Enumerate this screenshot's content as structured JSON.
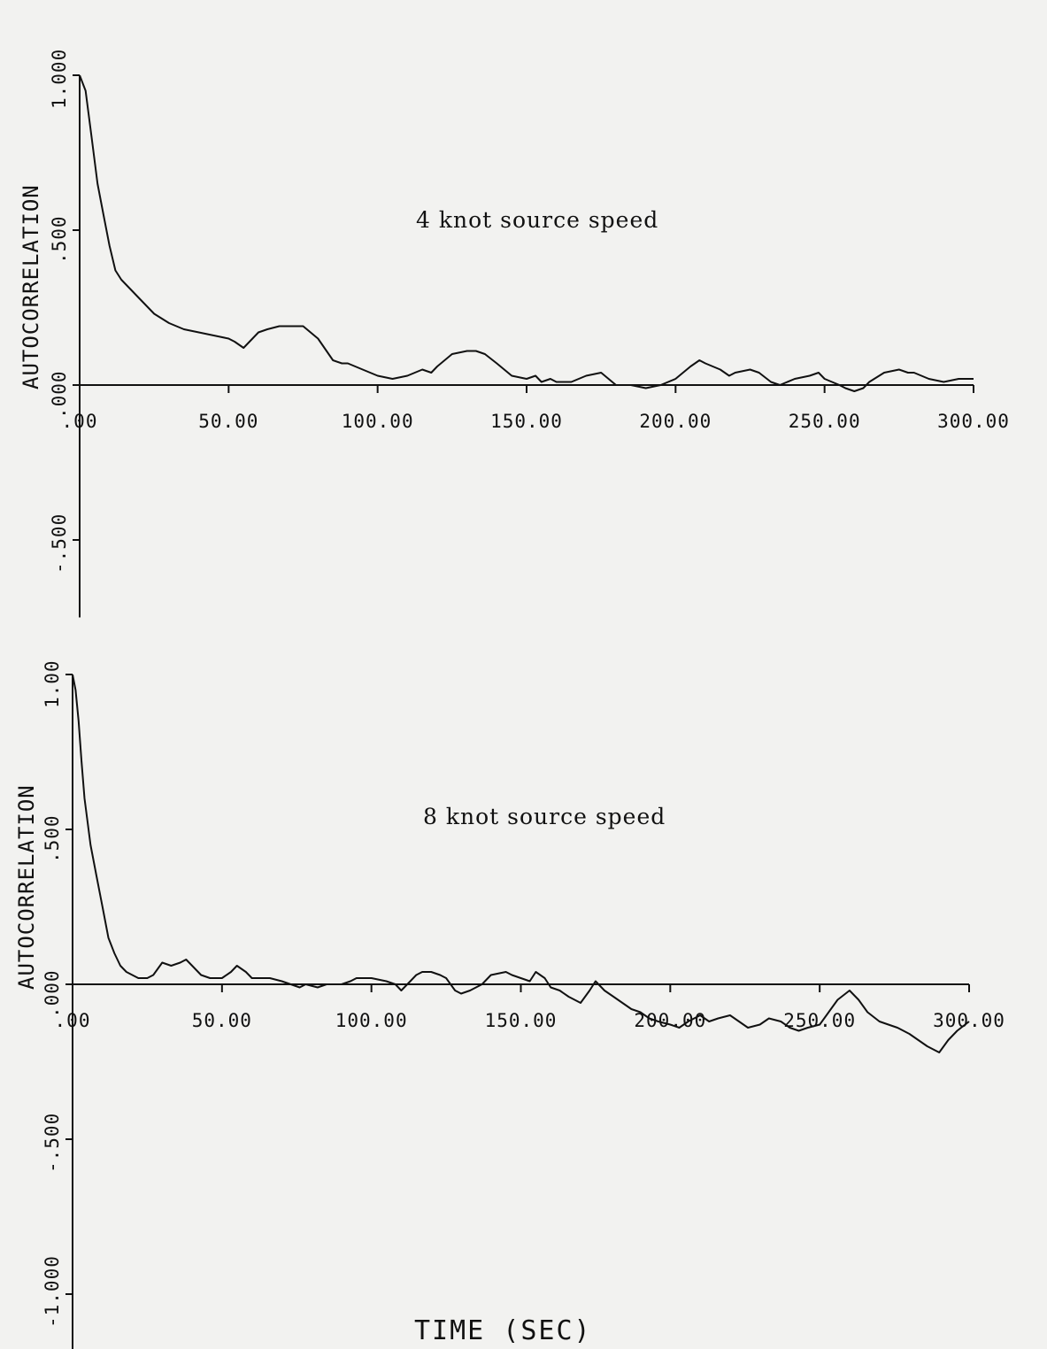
{
  "chart_data": [
    {
      "type": "line",
      "title": "",
      "annotation": "4 knot source speed",
      "xlabel": "",
      "ylabel": "AUTOCORRELATION",
      "xlim": [
        0,
        300
      ],
      "ylim": [
        -0.75,
        1.0
      ],
      "grid": false,
      "x_tick_labels": [
        ".00",
        "50.00",
        "100.00",
        "150.00",
        "200.00",
        "250.00",
        "300.00"
      ],
      "y_tick_labels": [
        "-.500",
        ".000",
        ".500",
        "1.000"
      ],
      "series": [
        {
          "x": [
            0,
            2,
            4,
            6,
            8,
            10,
            12,
            14,
            17,
            20,
            25,
            30,
            35,
            40,
            45,
            50,
            52,
            55,
            58,
            60,
            63,
            67,
            70,
            75,
            80,
            85,
            88,
            90,
            95,
            100,
            105,
            110,
            115,
            118,
            120,
            125,
            130,
            133,
            136,
            140,
            145,
            150,
            153,
            155,
            158,
            160,
            165,
            170,
            175,
            180,
            185,
            190,
            195,
            200,
            205,
            208,
            210,
            215,
            218,
            220,
            225,
            228,
            232,
            235,
            240,
            245,
            248,
            250,
            255,
            257,
            260,
            263,
            265,
            270,
            275,
            278,
            280,
            285,
            290,
            295,
            300
          ],
          "y": [
            1.0,
            0.95,
            0.8,
            0.65,
            0.55,
            0.45,
            0.37,
            0.34,
            0.31,
            0.28,
            0.23,
            0.2,
            0.18,
            0.17,
            0.16,
            0.15,
            0.14,
            0.12,
            0.15,
            0.17,
            0.18,
            0.19,
            0.19,
            0.19,
            0.15,
            0.08,
            0.07,
            0.07,
            0.05,
            0.03,
            0.02,
            0.03,
            0.05,
            0.04,
            0.06,
            0.1,
            0.11,
            0.11,
            0.1,
            0.07,
            0.03,
            0.02,
            0.03,
            0.01,
            0.02,
            0.01,
            0.01,
            0.03,
            0.04,
            0.0,
            0.0,
            -0.01,
            0.0,
            0.02,
            0.06,
            0.08,
            0.07,
            0.05,
            0.03,
            0.04,
            0.05,
            0.04,
            0.01,
            0.0,
            0.02,
            0.03,
            0.04,
            0.02,
            0.0,
            -0.01,
            -0.02,
            -0.01,
            0.01,
            0.04,
            0.05,
            0.04,
            0.04,
            0.02,
            0.01,
            0.02,
            0.02
          ]
        }
      ]
    },
    {
      "type": "line",
      "title": "",
      "annotation": "8 knot source speed",
      "xlabel": "TIME (SEC)",
      "ylabel": "AUTOCORRELATION",
      "xlim": [
        0,
        300
      ],
      "ylim": [
        -1.25,
        1.0
      ],
      "grid": false,
      "x_tick_labels": [
        ".00",
        "50.00",
        "100.00",
        "150.00",
        "200.00",
        "250.00",
        "300.00"
      ],
      "y_tick_labels": [
        "-1.000",
        "-.500",
        ".000",
        ".500",
        "1.00"
      ],
      "series": [
        {
          "x": [
            0,
            1,
            2,
            3,
            4,
            6,
            8,
            10,
            12,
            14,
            16,
            18,
            20,
            22,
            25,
            27,
            30,
            33,
            36,
            38,
            40,
            43,
            46,
            50,
            53,
            55,
            58,
            60,
            63,
            66,
            70,
            73,
            76,
            78,
            82,
            85,
            88,
            90,
            93,
            95,
            98,
            100,
            105,
            108,
            110,
            113,
            115,
            117,
            120,
            123,
            125,
            128,
            130,
            133,
            137,
            140,
            145,
            147,
            150,
            153,
            155,
            158,
            160,
            163,
            166,
            170,
            173,
            175,
            178,
            181,
            184,
            187,
            190,
            193,
            196,
            200,
            203,
            206,
            210,
            213,
            216,
            220,
            223,
            226,
            230,
            233,
            237,
            240,
            243,
            246,
            250,
            253,
            256,
            260,
            263,
            266,
            270,
            273,
            276,
            280,
            283,
            286,
            290,
            293,
            296,
            300
          ],
          "y": [
            1.0,
            0.95,
            0.85,
            0.72,
            0.6,
            0.45,
            0.35,
            0.25,
            0.15,
            0.1,
            0.06,
            0.04,
            0.03,
            0.02,
            0.02,
            0.03,
            0.07,
            0.06,
            0.07,
            0.08,
            0.06,
            0.03,
            0.02,
            0.02,
            0.04,
            0.06,
            0.04,
            0.02,
            0.02,
            0.02,
            0.01,
            0.0,
            -0.01,
            0.0,
            -0.01,
            0.0,
            0.0,
            0.0,
            0.01,
            0.02,
            0.02,
            0.02,
            0.01,
            0.0,
            -0.02,
            0.01,
            0.03,
            0.04,
            0.04,
            0.03,
            0.02,
            -0.02,
            -0.03,
            -0.02,
            0.0,
            0.03,
            0.04,
            0.03,
            0.02,
            0.01,
            0.04,
            0.02,
            -0.01,
            -0.02,
            -0.04,
            -0.06,
            -0.02,
            0.01,
            -0.02,
            -0.04,
            -0.06,
            -0.08,
            -0.09,
            -0.11,
            -0.12,
            -0.13,
            -0.14,
            -0.12,
            -0.1,
            -0.12,
            -0.11,
            -0.1,
            -0.12,
            -0.14,
            -0.13,
            -0.11,
            -0.12,
            -0.14,
            -0.15,
            -0.14,
            -0.13,
            -0.09,
            -0.05,
            -0.02,
            -0.05,
            -0.09,
            -0.12,
            -0.13,
            -0.14,
            -0.16,
            -0.18,
            -0.2,
            -0.22,
            -0.18,
            -0.15,
            -0.12
          ]
        }
      ]
    }
  ]
}
